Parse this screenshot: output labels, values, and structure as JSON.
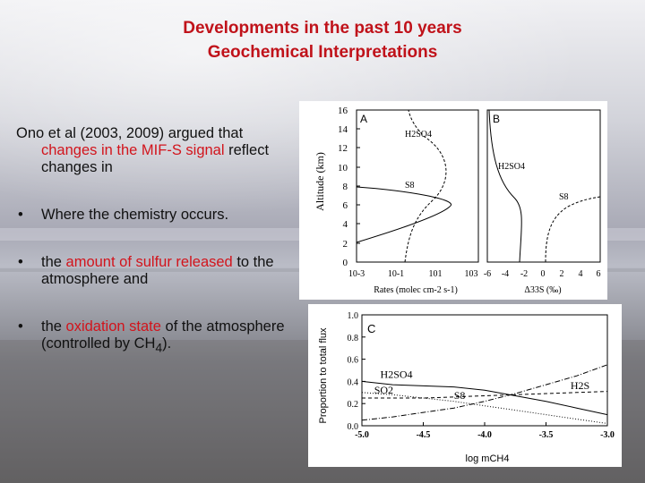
{
  "slide": {
    "title_line1": "Developments in the past 10 years",
    "title_line2": "Geochemical Interpretations",
    "intro_a": "Ono et al (2003, 2009) argued that ",
    "intro_hl": "changes in the MIF-S signal",
    "intro_b": " reflect changes in",
    "bullet_symbol": "•",
    "bullet1": "Where the chemistry occurs.",
    "bullet2_a": "the ",
    "bullet2_hl": "amount of sulfur released",
    "bullet2_b": " to the atmosphere and",
    "bullet3_a": "the ",
    "bullet3_hl": "oxidation state",
    "bullet3_b": " of the atmosphere (controlled by CH",
    "bullet3_sub": "4",
    "bullet3_c": ").",
    "colors": {
      "title": "#c0121a",
      "highlight": "#d2141c",
      "text": "#111111"
    }
  },
  "figure_ab": {
    "panel_a_letter": "A",
    "panel_b_letter": "B",
    "y_axis_label": "Altitude (km)",
    "y_ticks": [
      "0",
      "2",
      "4",
      "6",
      "8",
      "10",
      "12",
      "14",
      "16"
    ],
    "a_x_ticks": [
      "10-3",
      "10-1",
      "101",
      "103"
    ],
    "b_x_ticks": [
      "-6",
      "-4",
      "-2",
      "0",
      "2",
      "4",
      "6"
    ],
    "a_x_label": "Rates (molec cm-2 s-1)",
    "b_x_label": "Δ33S (‰)",
    "a_labels": {
      "h2so4": "H2SO4",
      "s8": "S8"
    },
    "b_labels": {
      "h2so4": "H2SO4",
      "s8": "S8"
    }
  },
  "chart_data": {
    "type": "line",
    "panel_letter": "C",
    "xlabel": "log mCH4",
    "ylabel": "Proportion to total flux",
    "xlim": [
      -5.0,
      -3.0
    ],
    "ylim": [
      0.0,
      1.0
    ],
    "x_ticks": [
      "-5.0",
      "-4.5",
      "-4.0",
      "-3.5",
      "-3.0"
    ],
    "y_ticks": [
      "0.0",
      "0.2",
      "0.4",
      "0.6",
      "0.8",
      "1.0"
    ],
    "x": [
      -5.0,
      -4.75,
      -4.5,
      -4.25,
      -4.0,
      -3.75,
      -3.5,
      -3.25,
      -3.0
    ],
    "series": [
      {
        "name": "H2SO4",
        "values": [
          0.4,
          0.37,
          0.36,
          0.35,
          0.32,
          0.27,
          0.22,
          0.16,
          0.1
        ]
      },
      {
        "name": "SO2",
        "values": [
          0.25,
          0.25,
          0.25,
          0.26,
          0.27,
          0.28,
          0.29,
          0.3,
          0.31
        ]
      },
      {
        "name": "S8",
        "values": [
          0.3,
          0.28,
          0.25,
          0.22,
          0.18,
          0.14,
          0.1,
          0.06,
          0.02
        ]
      },
      {
        "name": "H2S",
        "values": [
          0.05,
          0.08,
          0.12,
          0.16,
          0.22,
          0.29,
          0.37,
          0.45,
          0.55
        ]
      }
    ]
  }
}
